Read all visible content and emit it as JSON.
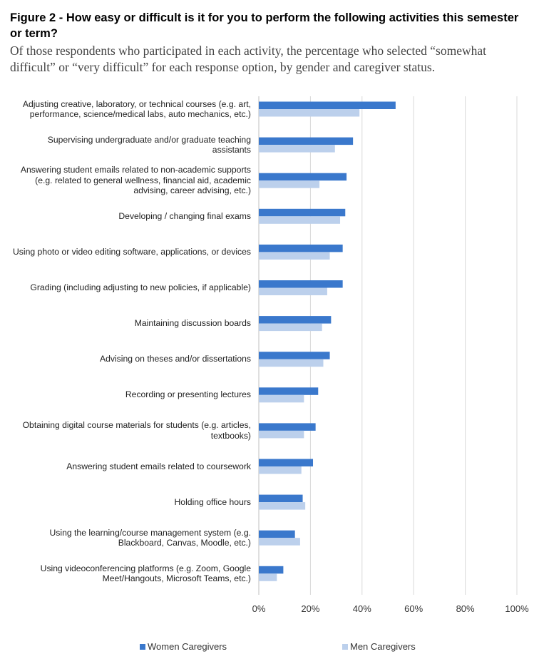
{
  "title": "Figure 2 - How easy or difficult is it for you to perform the following activities this semester or term?",
  "subtitle": "Of those respondents who participated in each activity, the percentage who selected “somewhat difficult” or “very difficult” for each response option, by gender and caregiver status.",
  "chart_data": {
    "type": "bar",
    "orientation": "horizontal",
    "categories": [
      "Adjusting creative, laboratory, or technical courses (e.g. art, performance, science/medical labs, auto mechanics, etc.)",
      "Supervising undergraduate and/or graduate teaching assistants",
      "Answering student emails related to non-academic supports (e.g. related to general wellness, financial aid, academic advising, career advising, etc.)",
      "Developing / changing final exams",
      "Using photo or video editing software, applications, or devices",
      "Grading (including adjusting to new policies, if applicable)",
      "Maintaining discussion boards",
      "Advising on theses and/or dissertations",
      "Recording or presenting lectures",
      "Obtaining digital course materials for students (e.g. articles, textbooks)",
      "Answering student emails related to coursework",
      "Holding office hours",
      "Using the learning/course management system (e.g. Blackboard, Canvas, Moodle, etc.)",
      "Using videoconferencing platforms (e.g. Zoom, Google Meet/Hangouts, Microsoft Teams, etc.)"
    ],
    "series": [
      {
        "name": "Women Caregivers",
        "color": "#3a78cc",
        "values": [
          53,
          36.5,
          34,
          33.5,
          32.5,
          32.5,
          28,
          27.5,
          23,
          22,
          21,
          17,
          14,
          9.5
        ]
      },
      {
        "name": "Men Caregivers",
        "color": "#bcd0ec",
        "values": [
          39,
          29.5,
          23.5,
          31.5,
          27.5,
          26.5,
          24.5,
          25,
          17.5,
          17.5,
          16.5,
          18,
          16,
          7
        ]
      }
    ],
    "xlim": [
      0,
      100
    ],
    "xticks": [
      "0%",
      "20%",
      "40%",
      "60%",
      "80%",
      "100%"
    ],
    "tick_values": [
      0,
      20,
      40,
      60,
      80,
      100
    ],
    "grid": true,
    "legend_position": "bottom"
  }
}
